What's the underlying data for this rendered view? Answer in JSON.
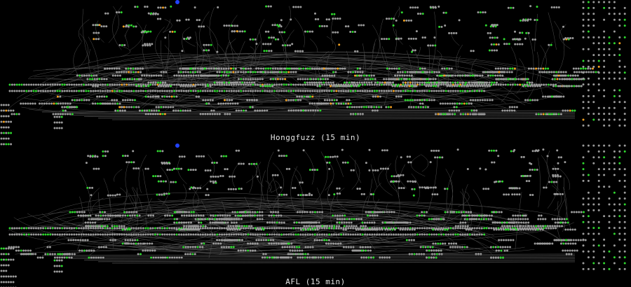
{
  "figure": {
    "panels": [
      {
        "id": "honggfuzz",
        "caption": "Honggfuzz (15 min)",
        "seed": 7,
        "covered_green": 0.17,
        "covered_orange": 0.035
      },
      {
        "id": "afl",
        "caption": "AFL (15 min)",
        "seed": 13,
        "covered_green": 0.16,
        "covered_orange": 0.0
      }
    ],
    "colors": {
      "background": "#000000",
      "uncovered_node": "#9a9a9a",
      "covered_node": "#2ed62e",
      "partial_node": "#f0a020",
      "entry_node": "#2244ff",
      "edge": "#6a6a6a"
    }
  }
}
